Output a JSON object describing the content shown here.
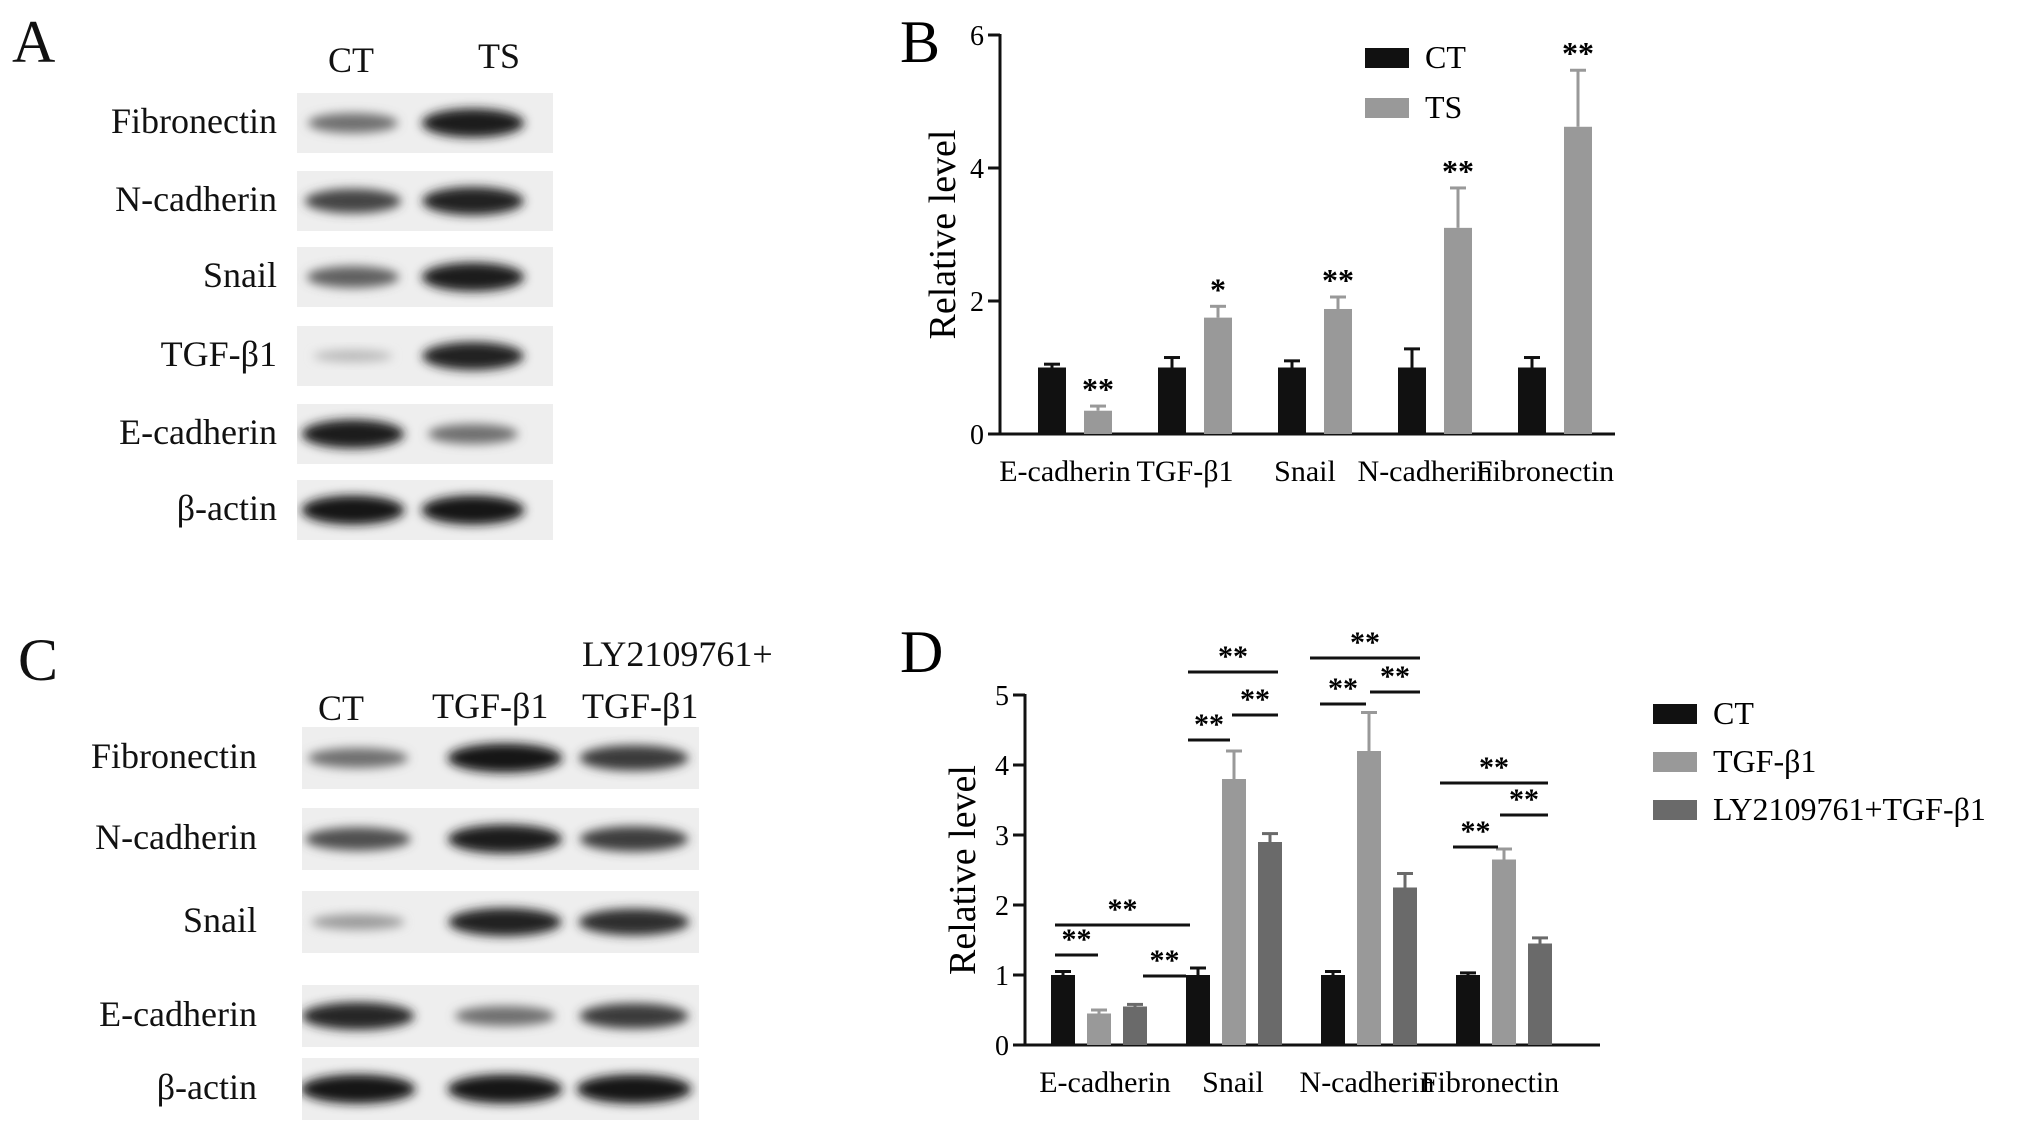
{
  "panelA": {
    "letter": "A",
    "lanes": [
      "CT",
      "TS"
    ],
    "rows": [
      {
        "label": "Fibronectin",
        "intensities": [
          0.55,
          0.95
        ]
      },
      {
        "label": "N-cadherin",
        "intensities": [
          0.75,
          0.92
        ]
      },
      {
        "label": "Snail",
        "intensities": [
          0.62,
          0.95
        ]
      },
      {
        "label": "TGF-β1",
        "intensities": [
          0.2,
          0.92
        ]
      },
      {
        "label": "E-cadherin",
        "intensities": [
          0.95,
          0.55
        ]
      },
      {
        "label": "β-actin",
        "intensities": [
          0.97,
          0.97
        ]
      }
    ]
  },
  "panelC": {
    "letter": "C",
    "lanes": [
      "CT",
      "TGF-β1",
      "LY2109761+",
      "TGF-β1"
    ],
    "rows": [
      {
        "label": "Fibronectin",
        "intensities": [
          0.55,
          0.97,
          0.8
        ]
      },
      {
        "label": "N-cadherin",
        "intensities": [
          0.7,
          0.95,
          0.78
        ]
      },
      {
        "label": "Snail",
        "intensities": [
          0.35,
          0.92,
          0.85
        ]
      },
      {
        "label": "E-cadherin",
        "intensities": [
          0.9,
          0.55,
          0.8
        ]
      },
      {
        "label": "β-actin",
        "intensities": [
          0.97,
          0.97,
          0.97
        ]
      }
    ]
  },
  "colors": {
    "black": "#111111",
    "light_gray": "#999999",
    "dark_gray": "#6a6a6a"
  },
  "chart_data": [
    {
      "panel": "B",
      "type": "bar",
      "ylabel": "Relative level",
      "ylim": [
        0,
        6
      ],
      "yticks": [
        "0",
        "2",
        "4",
        "6"
      ],
      "categories": [
        "E-cadherin",
        "TGF-β1",
        "Snail",
        "N-cadherin",
        "Fibronectin"
      ],
      "series": [
        {
          "name": "CT",
          "color": "#111111",
          "values": [
            1.0,
            1.0,
            1.0,
            1.0,
            1.0
          ],
          "errors": [
            0.05,
            0.15,
            0.1,
            0.28,
            0.15
          ]
        },
        {
          "name": "TS",
          "color": "#999999",
          "values": [
            0.35,
            1.75,
            1.88,
            3.1,
            4.62
          ],
          "errors": [
            0.07,
            0.17,
            0.18,
            0.6,
            0.85
          ]
        }
      ],
      "significance": [
        "**",
        "*",
        "**",
        "**",
        "**"
      ],
      "legend": "top-right"
    },
    {
      "panel": "D",
      "type": "bar",
      "ylabel": "Relative level",
      "ylim": [
        0,
        5
      ],
      "yticks": [
        "0",
        "1",
        "2",
        "3",
        "4",
        "5"
      ],
      "categories": [
        "E-cadherin",
        "Snail",
        "N-cadherin",
        "Fibronectin"
      ],
      "series": [
        {
          "name": "CT",
          "color": "#111111",
          "values": [
            1.0,
            1.0,
            1.0,
            1.0
          ],
          "errors": [
            0.05,
            0.1,
            0.05,
            0.03
          ]
        },
        {
          "name": "TGF-β1",
          "color": "#999999",
          "values": [
            0.45,
            3.8,
            4.2,
            2.65
          ],
          "errors": [
            0.05,
            0.4,
            0.55,
            0.15
          ]
        },
        {
          "name": "LY2109761+TGF-β1",
          "color": "#6a6a6a",
          "values": [
            0.55,
            2.9,
            2.25,
            1.45
          ],
          "errors": [
            0.03,
            0.12,
            0.2,
            0.08
          ]
        }
      ],
      "significance_label": "**",
      "legend": "right"
    }
  ]
}
